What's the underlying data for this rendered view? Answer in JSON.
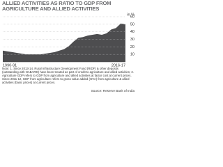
{
  "chart_data": {
    "type": "area",
    "title": "ALLIED ACTIVITIES AS RATIO TO GDP FROM AGRICULTURE AND ALLIED ACTIVITIES",
    "y_label": "in %",
    "categories": [
      "1990-91",
      null,
      null,
      null,
      null,
      null,
      null,
      null,
      null,
      null,
      null,
      null,
      null,
      null,
      null,
      null,
      null,
      null,
      null,
      null,
      null,
      null,
      null,
      null,
      null,
      null,
      "2016-17"
    ],
    "values": [
      15,
      14,
      13,
      12,
      11,
      10,
      10,
      10,
      10,
      11,
      12,
      13,
      15,
      17,
      21,
      27,
      32,
      33,
      35,
      36,
      37,
      36,
      38,
      43,
      45,
      51,
      50
    ],
    "color": "#4d4d4f",
    "ylim": [
      0,
      60
    ],
    "yticks": [
      10,
      20,
      30,
      40,
      50,
      60
    ],
    "grid": true,
    "notes": "Note: 1. Since 2013-14, Rural Infrastructure Development Fund (RIDF) & other deposits (outstanding with NABARD) have been treated as part of credit to agriculture and allied activities; 2. Agriculture GDP refers to GDP from agriculture and allied activities at factor cost at current prices. Since 2011-12, GDP from agriculture refers to gross value added (GVA) from agriculture & allied activities (basic prices) at current prices.",
    "source": "Source: Reserve Bank of India"
  }
}
